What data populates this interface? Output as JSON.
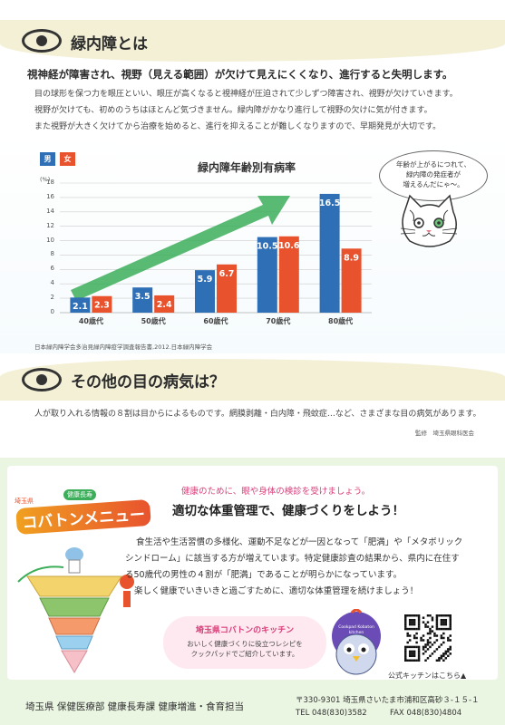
{
  "section1": {
    "title": "緑内障とは",
    "lead": "視神経が障害され、視野（見える範囲）が欠けて見えにくくなり、進行すると失明します。",
    "paragraphs": [
      "目の球形を保つ力を眼圧といい、眼圧が高くなると視神経が圧迫されて少しずつ障害され、視野が欠けていきます。",
      "視野が欠けても、初めのうちはほとんど気づきません。緑内障がかなり進行して視野の欠けに気が付きます。",
      "また視野が大きく欠けてから治療を始めると、進行を抑えることが難しくなりますので、早期発見が大切です。"
    ]
  },
  "legend": {
    "male": "男",
    "female": "女"
  },
  "colors": {
    "male": "#2f6fb5",
    "female": "#e8532e",
    "arrow": "#3cae5a"
  },
  "chart_data": {
    "type": "bar",
    "title": "緑内障年齢別有病率",
    "ylabel": "(%)",
    "ylim": [
      0,
      18
    ],
    "yticks": [
      "0",
      "2",
      "4",
      "6",
      "8",
      "10",
      "12",
      "14",
      "16",
      "18"
    ],
    "categories": [
      "40歳代",
      "50歳代",
      "60歳代",
      "70歳代",
      "80歳代"
    ],
    "series": [
      {
        "name": "男",
        "values": [
          2.1,
          3.5,
          5.9,
          10.5,
          16.5
        ],
        "labels": [
          "2.1",
          "3.5",
          "5.9",
          "10.5",
          "16.5"
        ]
      },
      {
        "name": "女",
        "values": [
          2.3,
          2.4,
          6.7,
          10.6,
          8.9
        ],
        "labels": [
          "2.3",
          "2.4",
          "6.7",
          "10.6",
          "8.9"
        ]
      }
    ],
    "source": "日本緑内障学会多治見緑内障疫学調査報告書,2012.日本緑内障学会"
  },
  "cat_bubble": [
    "年齢が上がるにつれて、",
    "緑内障の発症者が",
    "増えるんだにゃ～。"
  ],
  "section2": {
    "title": "その他の目の病気は？",
    "body": "人が取り入れる情報の８割は目からによるものです。網膜剥離・白内障・飛蚊症…など、さまざまな目の病気があります。",
    "supervisor": "監修　埼玉県眼科医会"
  },
  "section3": {
    "logo_small": "埼玉県",
    "logo_badge": "健康長寿",
    "logo_main": "コバトンメニュー",
    "kicker": "健康のために、眼や身体の検診を受けましょう。",
    "headline": "適切な体重管理で、健康づくりをしよう！",
    "lines": [
      "食生活や生活習慣の多様化、運動不足などが一因となって「肥満」や「メタボリック",
      "シンドローム」に該当する方が増えています。特定健康診査の結果から、県内に在住す",
      "る50歳代の男性の４割が「肥満」であることが明らかになっています。",
      "楽しく健康でいきいきと過ごすために、適切な体重管理を続けましょう！"
    ],
    "kitchen_title": "埼玉県コバトンのキッチン",
    "kitchen_text": [
      "おいしく健康づくりに役立つレシピを",
      "クックパッドでご紹介しています。"
    ],
    "mascot_arc": "Cookpad Kobaton kitchen",
    "qr_caption": "公式キッチンはこちら▲"
  },
  "footer": {
    "dept": "埼玉県 保健医療部 健康長寿課 健康増進・食育担当",
    "address": "〒330-9301 埼玉県さいたま市浦和区高砂３-１５-１",
    "tel": "TEL 048(830)3582",
    "fax": "FAX 048(830)4804"
  }
}
